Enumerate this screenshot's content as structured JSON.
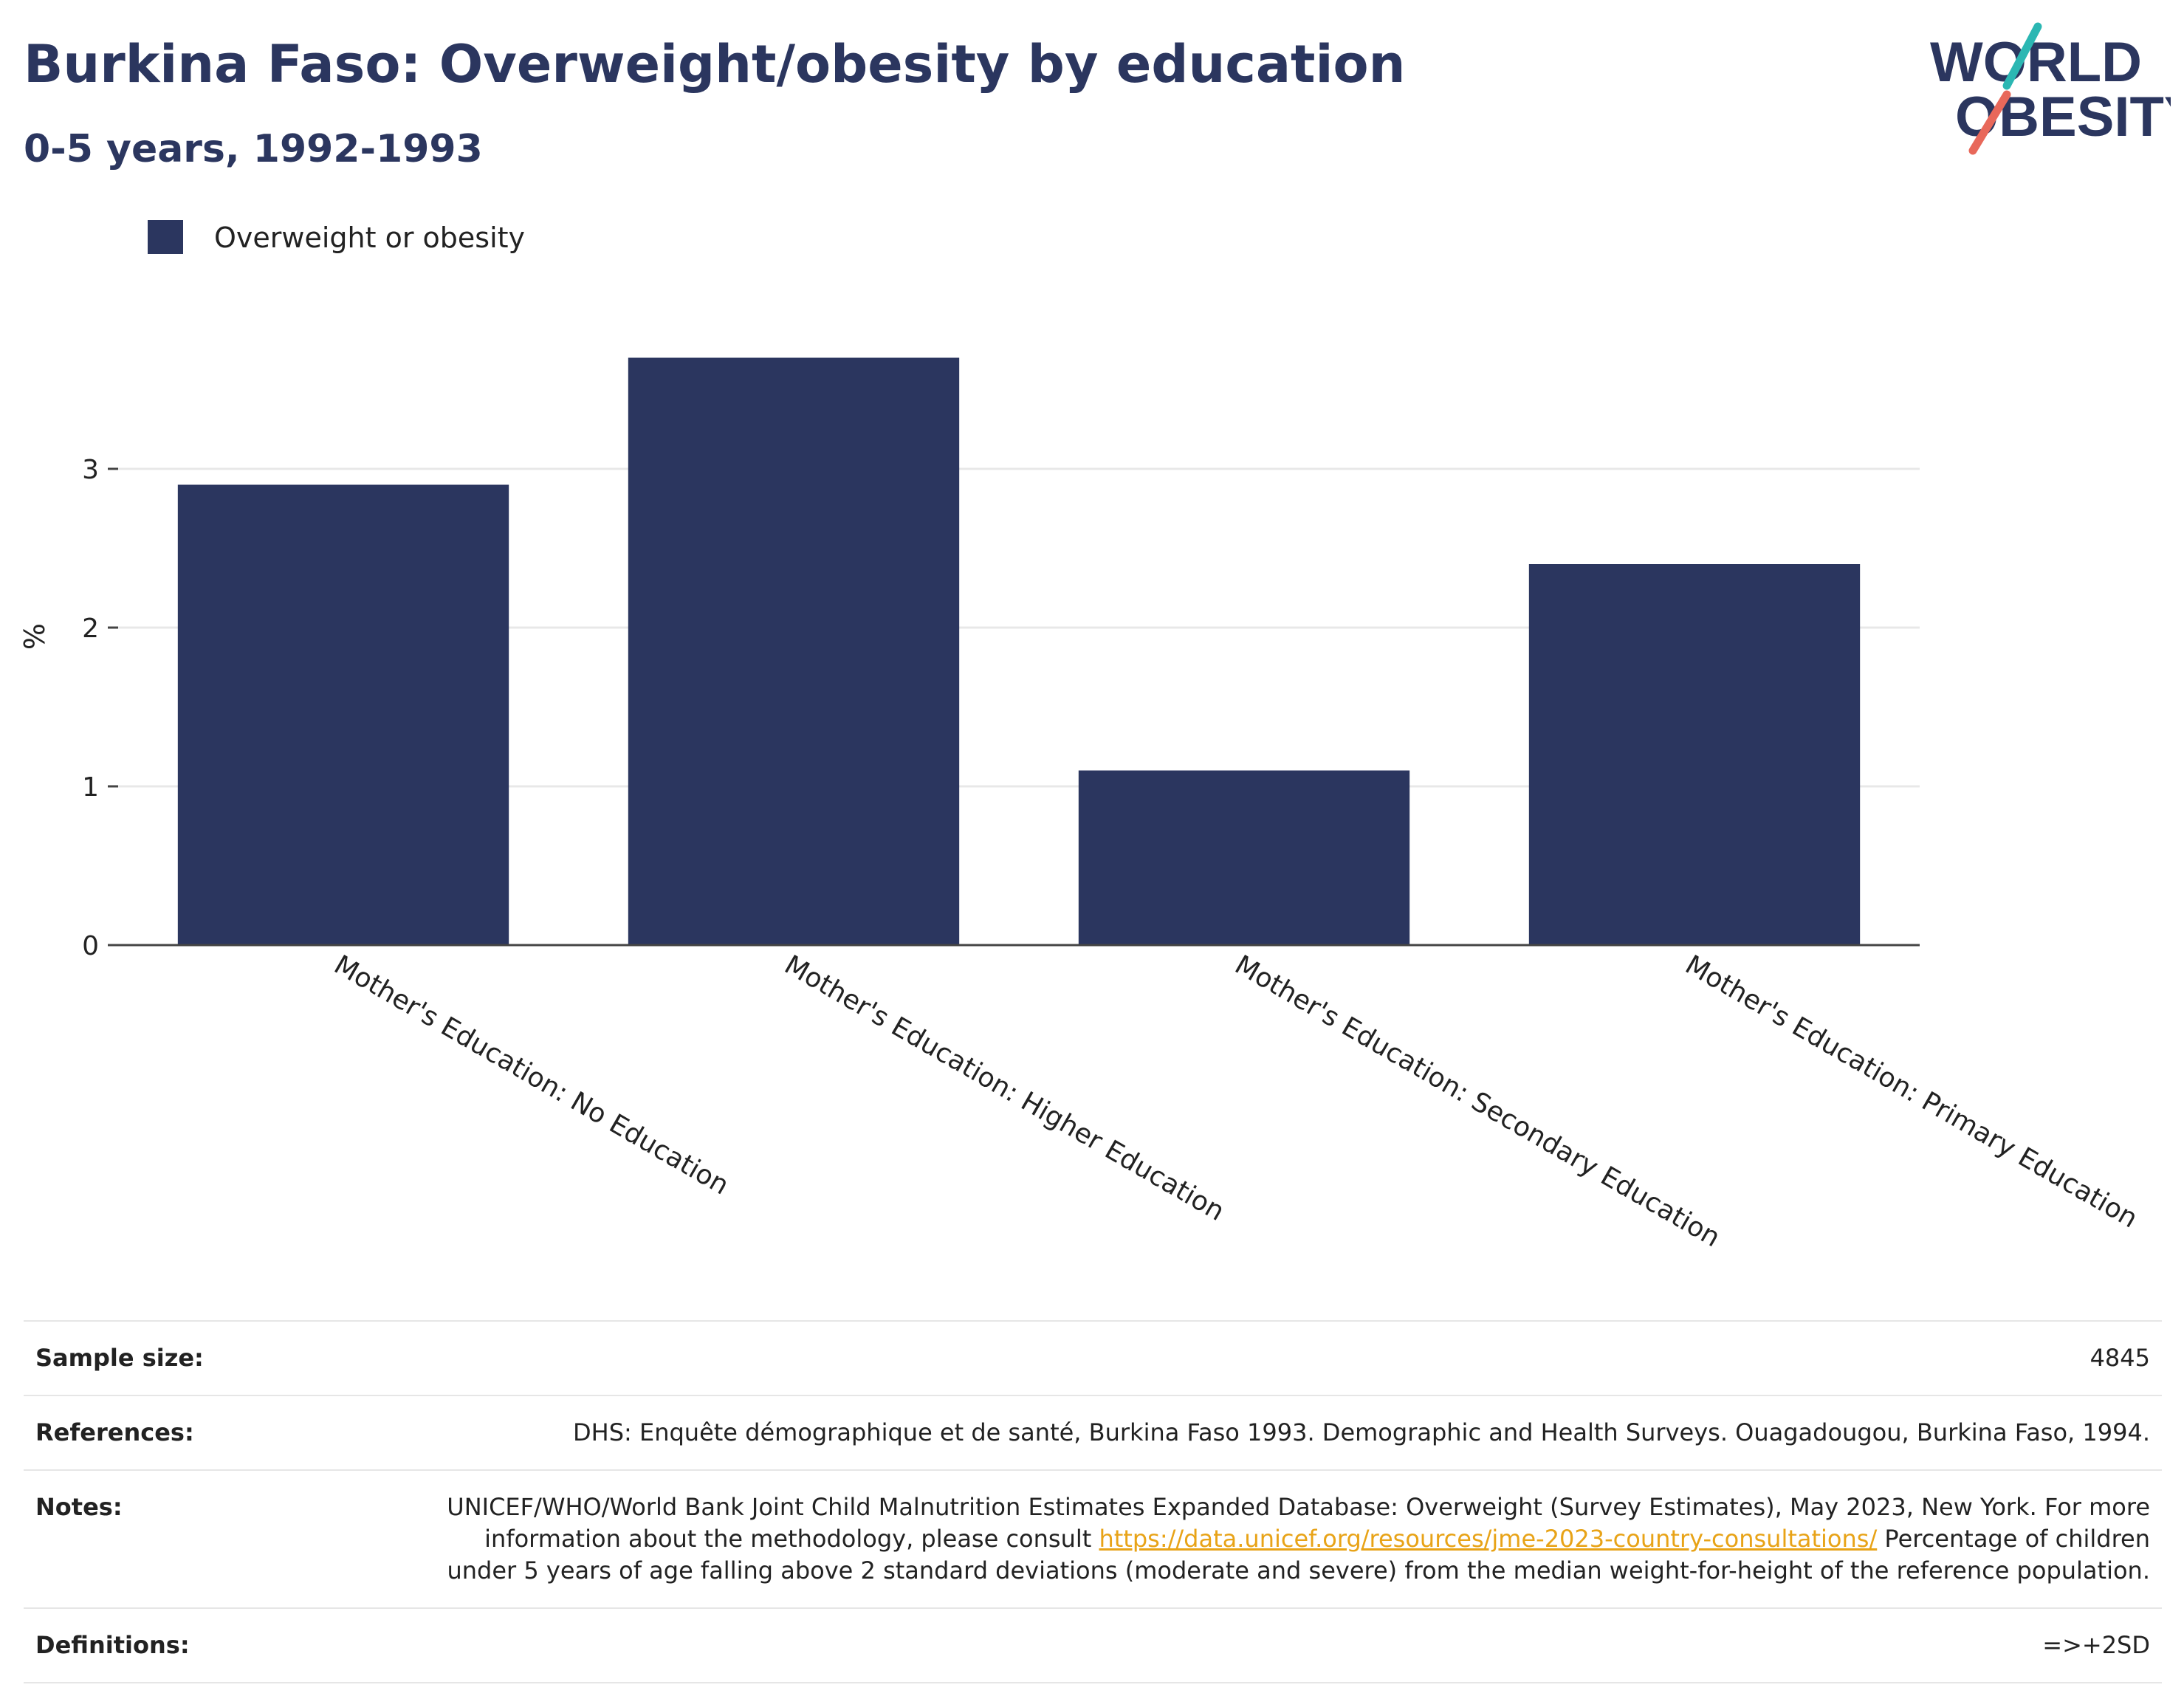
{
  "header": {
    "title": "Burkina Faso: Overweight/obesity by education",
    "subtitle": "0-5 years, 1992-1993"
  },
  "logo": {
    "line1": "WORLD",
    "line2": "OBESITY",
    "teal": "#2bb7b3",
    "coral": "#e8685a",
    "navy": "#2b365f"
  },
  "chart_data": {
    "type": "bar",
    "categories": [
      "Mother's Education: No Education",
      "Mother's Education: Higher Education",
      "Mother's Education: Secondary Education",
      "Mother's Education: Primary Education"
    ],
    "series": [
      {
        "name": "Overweight or obesity",
        "values": [
          2.9,
          3.7,
          1.1,
          2.4
        ],
        "color": "#2b365f"
      }
    ],
    "ylabel": "%",
    "xlabel": "",
    "ylim": [
      0,
      4
    ],
    "yticks": [
      0,
      1,
      2,
      3
    ],
    "grid": true,
    "legend_position": "top-left"
  },
  "info": {
    "sample_size_label": "Sample size:",
    "sample_size_value": "4845",
    "references_label": "References:",
    "references_value": "DHS: Enquête démographique et de santé, Burkina Faso 1993. Demographic and Health Surveys. Ouagadougou, Burkina Faso, 1994.",
    "notes_label": "Notes:",
    "notes_text_before": "UNICEF/WHO/World Bank Joint Child Malnutrition Estimates Expanded Database: Overweight (Survey Estimates), May 2023, New York. For more information about the methodology, please consult ",
    "notes_link": "https://data.unicef.org/resources/jme-2023-country-consultations/",
    "notes_text_after": " Percentage of children under 5 years of age falling above 2 standard deviations (moderate and severe) from the median weight-for-height of the reference population.",
    "definitions_label": "Definitions:",
    "definitions_value": "=>+2SD"
  }
}
